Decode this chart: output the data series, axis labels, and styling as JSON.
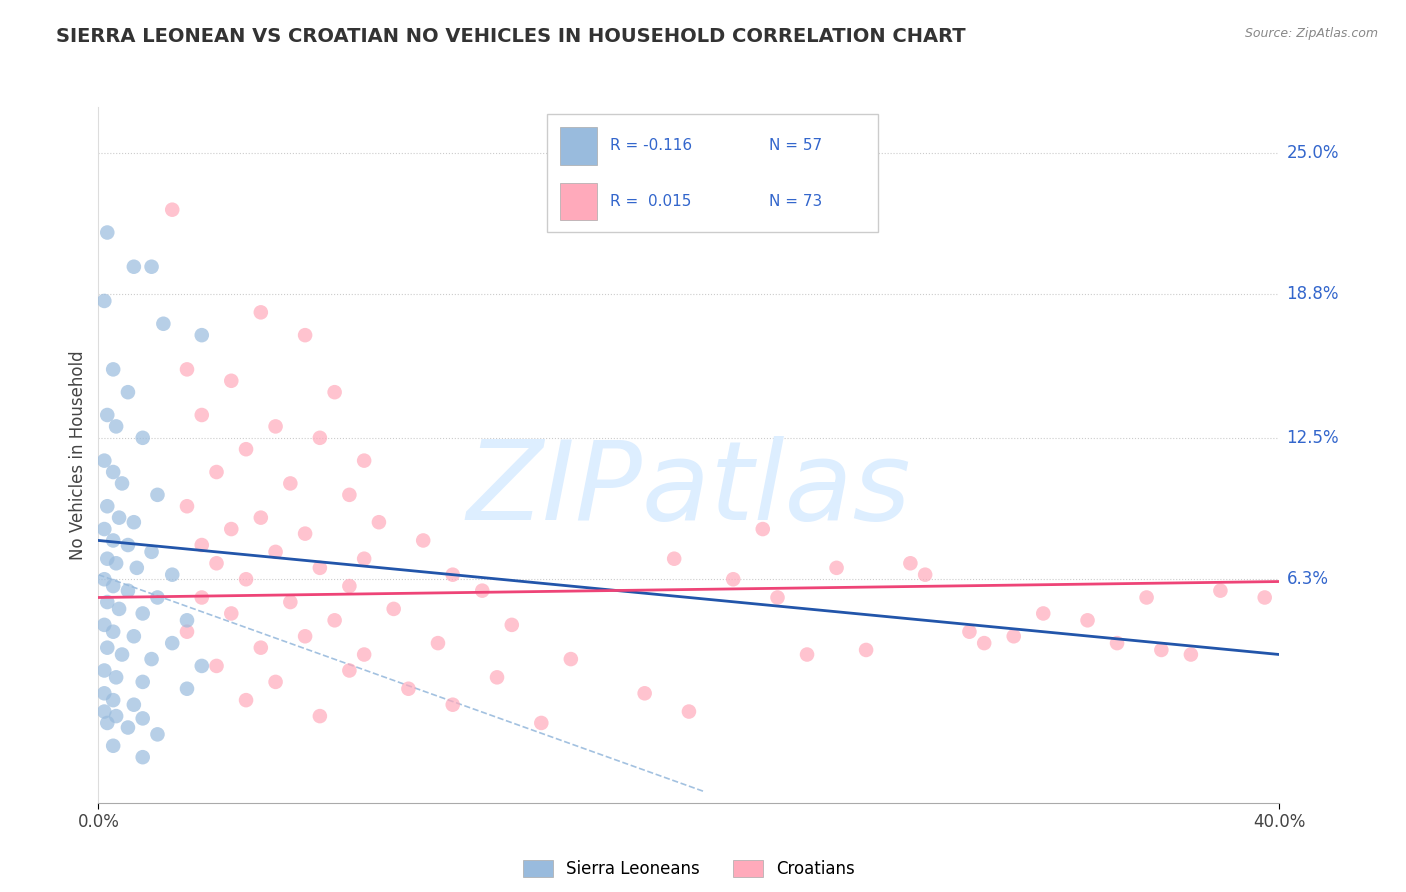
{
  "title": "SIERRA LEONEAN VS CROATIAN NO VEHICLES IN HOUSEHOLD CORRELATION CHART",
  "source": "Source: ZipAtlas.com",
  "ylabel": "No Vehicles in Household",
  "xmin": 0.0,
  "xmax": 40.0,
  "ymin": -3.5,
  "ymax": 27.0,
  "sierra_color": "#99BBDD",
  "croatian_color": "#FFAABB",
  "sierra_line_color": "#2255AA",
  "croatian_line_color": "#EE4477",
  "dash_color": "#99BBDD",
  "watermark": "ZIPatlas",
  "watermark_color": "#DDEEFF",
  "ytick_vals": [
    6.3,
    12.5,
    18.8,
    25.0
  ],
  "ytick_labels": [
    "6.3%",
    "12.5%",
    "18.8%",
    "25.0%"
  ],
  "sierra_dots": [
    [
      0.3,
      21.5
    ],
    [
      1.2,
      20.0
    ],
    [
      1.8,
      20.0
    ],
    [
      0.2,
      18.5
    ],
    [
      2.2,
      17.5
    ],
    [
      3.5,
      17.0
    ],
    [
      0.5,
      15.5
    ],
    [
      1.0,
      14.5
    ],
    [
      0.3,
      13.5
    ],
    [
      0.6,
      13.0
    ],
    [
      1.5,
      12.5
    ],
    [
      0.2,
      11.5
    ],
    [
      0.5,
      11.0
    ],
    [
      0.8,
      10.5
    ],
    [
      2.0,
      10.0
    ],
    [
      0.3,
      9.5
    ],
    [
      0.7,
      9.0
    ],
    [
      1.2,
      8.8
    ],
    [
      0.2,
      8.5
    ],
    [
      0.5,
      8.0
    ],
    [
      1.0,
      7.8
    ],
    [
      1.8,
      7.5
    ],
    [
      0.3,
      7.2
    ],
    [
      0.6,
      7.0
    ],
    [
      1.3,
      6.8
    ],
    [
      2.5,
      6.5
    ],
    [
      0.2,
      6.3
    ],
    [
      0.5,
      6.0
    ],
    [
      1.0,
      5.8
    ],
    [
      2.0,
      5.5
    ],
    [
      0.3,
      5.3
    ],
    [
      0.7,
      5.0
    ],
    [
      1.5,
      4.8
    ],
    [
      3.0,
      4.5
    ],
    [
      0.2,
      4.3
    ],
    [
      0.5,
      4.0
    ],
    [
      1.2,
      3.8
    ],
    [
      2.5,
      3.5
    ],
    [
      0.3,
      3.3
    ],
    [
      0.8,
      3.0
    ],
    [
      1.8,
      2.8
    ],
    [
      3.5,
      2.5
    ],
    [
      0.2,
      2.3
    ],
    [
      0.6,
      2.0
    ],
    [
      1.5,
      1.8
    ],
    [
      3.0,
      1.5
    ],
    [
      0.2,
      1.3
    ],
    [
      0.5,
      1.0
    ],
    [
      1.2,
      0.8
    ],
    [
      0.2,
      0.5
    ],
    [
      0.6,
      0.3
    ],
    [
      1.5,
      0.2
    ],
    [
      0.3,
      0.0
    ],
    [
      1.0,
      -0.2
    ],
    [
      2.0,
      -0.5
    ],
    [
      0.5,
      -1.0
    ],
    [
      1.5,
      -1.5
    ]
  ],
  "croatian_dots": [
    [
      2.5,
      22.5
    ],
    [
      5.5,
      18.0
    ],
    [
      7.0,
      17.0
    ],
    [
      3.0,
      15.5
    ],
    [
      4.5,
      15.0
    ],
    [
      8.0,
      14.5
    ],
    [
      3.5,
      13.5
    ],
    [
      6.0,
      13.0
    ],
    [
      7.5,
      12.5
    ],
    [
      5.0,
      12.0
    ],
    [
      9.0,
      11.5
    ],
    [
      4.0,
      11.0
    ],
    [
      6.5,
      10.5
    ],
    [
      8.5,
      10.0
    ],
    [
      3.0,
      9.5
    ],
    [
      5.5,
      9.0
    ],
    [
      9.5,
      8.8
    ],
    [
      4.5,
      8.5
    ],
    [
      7.0,
      8.3
    ],
    [
      11.0,
      8.0
    ],
    [
      3.5,
      7.8
    ],
    [
      6.0,
      7.5
    ],
    [
      9.0,
      7.2
    ],
    [
      4.0,
      7.0
    ],
    [
      7.5,
      6.8
    ],
    [
      12.0,
      6.5
    ],
    [
      5.0,
      6.3
    ],
    [
      8.5,
      6.0
    ],
    [
      13.0,
      5.8
    ],
    [
      3.5,
      5.5
    ],
    [
      6.5,
      5.3
    ],
    [
      10.0,
      5.0
    ],
    [
      4.5,
      4.8
    ],
    [
      8.0,
      4.5
    ],
    [
      14.0,
      4.3
    ],
    [
      3.0,
      4.0
    ],
    [
      7.0,
      3.8
    ],
    [
      11.5,
      3.5
    ],
    [
      5.5,
      3.3
    ],
    [
      9.0,
      3.0
    ],
    [
      16.0,
      2.8
    ],
    [
      4.0,
      2.5
    ],
    [
      8.5,
      2.3
    ],
    [
      13.5,
      2.0
    ],
    [
      6.0,
      1.8
    ],
    [
      10.5,
      1.5
    ],
    [
      18.5,
      1.3
    ],
    [
      5.0,
      1.0
    ],
    [
      12.0,
      0.8
    ],
    [
      20.0,
      0.5
    ],
    [
      7.5,
      0.3
    ],
    [
      15.0,
      0.0
    ],
    [
      22.5,
      8.5
    ],
    [
      35.5,
      5.5
    ],
    [
      28.0,
      6.5
    ],
    [
      30.0,
      3.5
    ],
    [
      26.0,
      3.2
    ],
    [
      33.5,
      4.5
    ],
    [
      38.0,
      5.8
    ],
    [
      24.0,
      3.0
    ],
    [
      31.0,
      3.8
    ],
    [
      27.5,
      7.0
    ],
    [
      36.0,
      3.2
    ],
    [
      25.0,
      6.8
    ],
    [
      29.5,
      4.0
    ],
    [
      23.0,
      5.5
    ],
    [
      32.0,
      4.8
    ],
    [
      34.5,
      3.5
    ],
    [
      37.0,
      3.0
    ],
    [
      39.5,
      5.5
    ],
    [
      21.5,
      6.3
    ],
    [
      19.5,
      7.2
    ]
  ],
  "sierra_reg_x0": 0.0,
  "sierra_reg_x1": 40.0,
  "sierra_reg_y0": 8.0,
  "sierra_reg_y1": 3.0,
  "croatian_reg_x0": 0.0,
  "croatian_reg_x1": 40.0,
  "croatian_reg_y0": 5.5,
  "croatian_reg_y1": 6.2,
  "dash_x0": 0.0,
  "dash_x1": 20.5,
  "dash_y0": 6.5,
  "dash_y1": -3.0
}
